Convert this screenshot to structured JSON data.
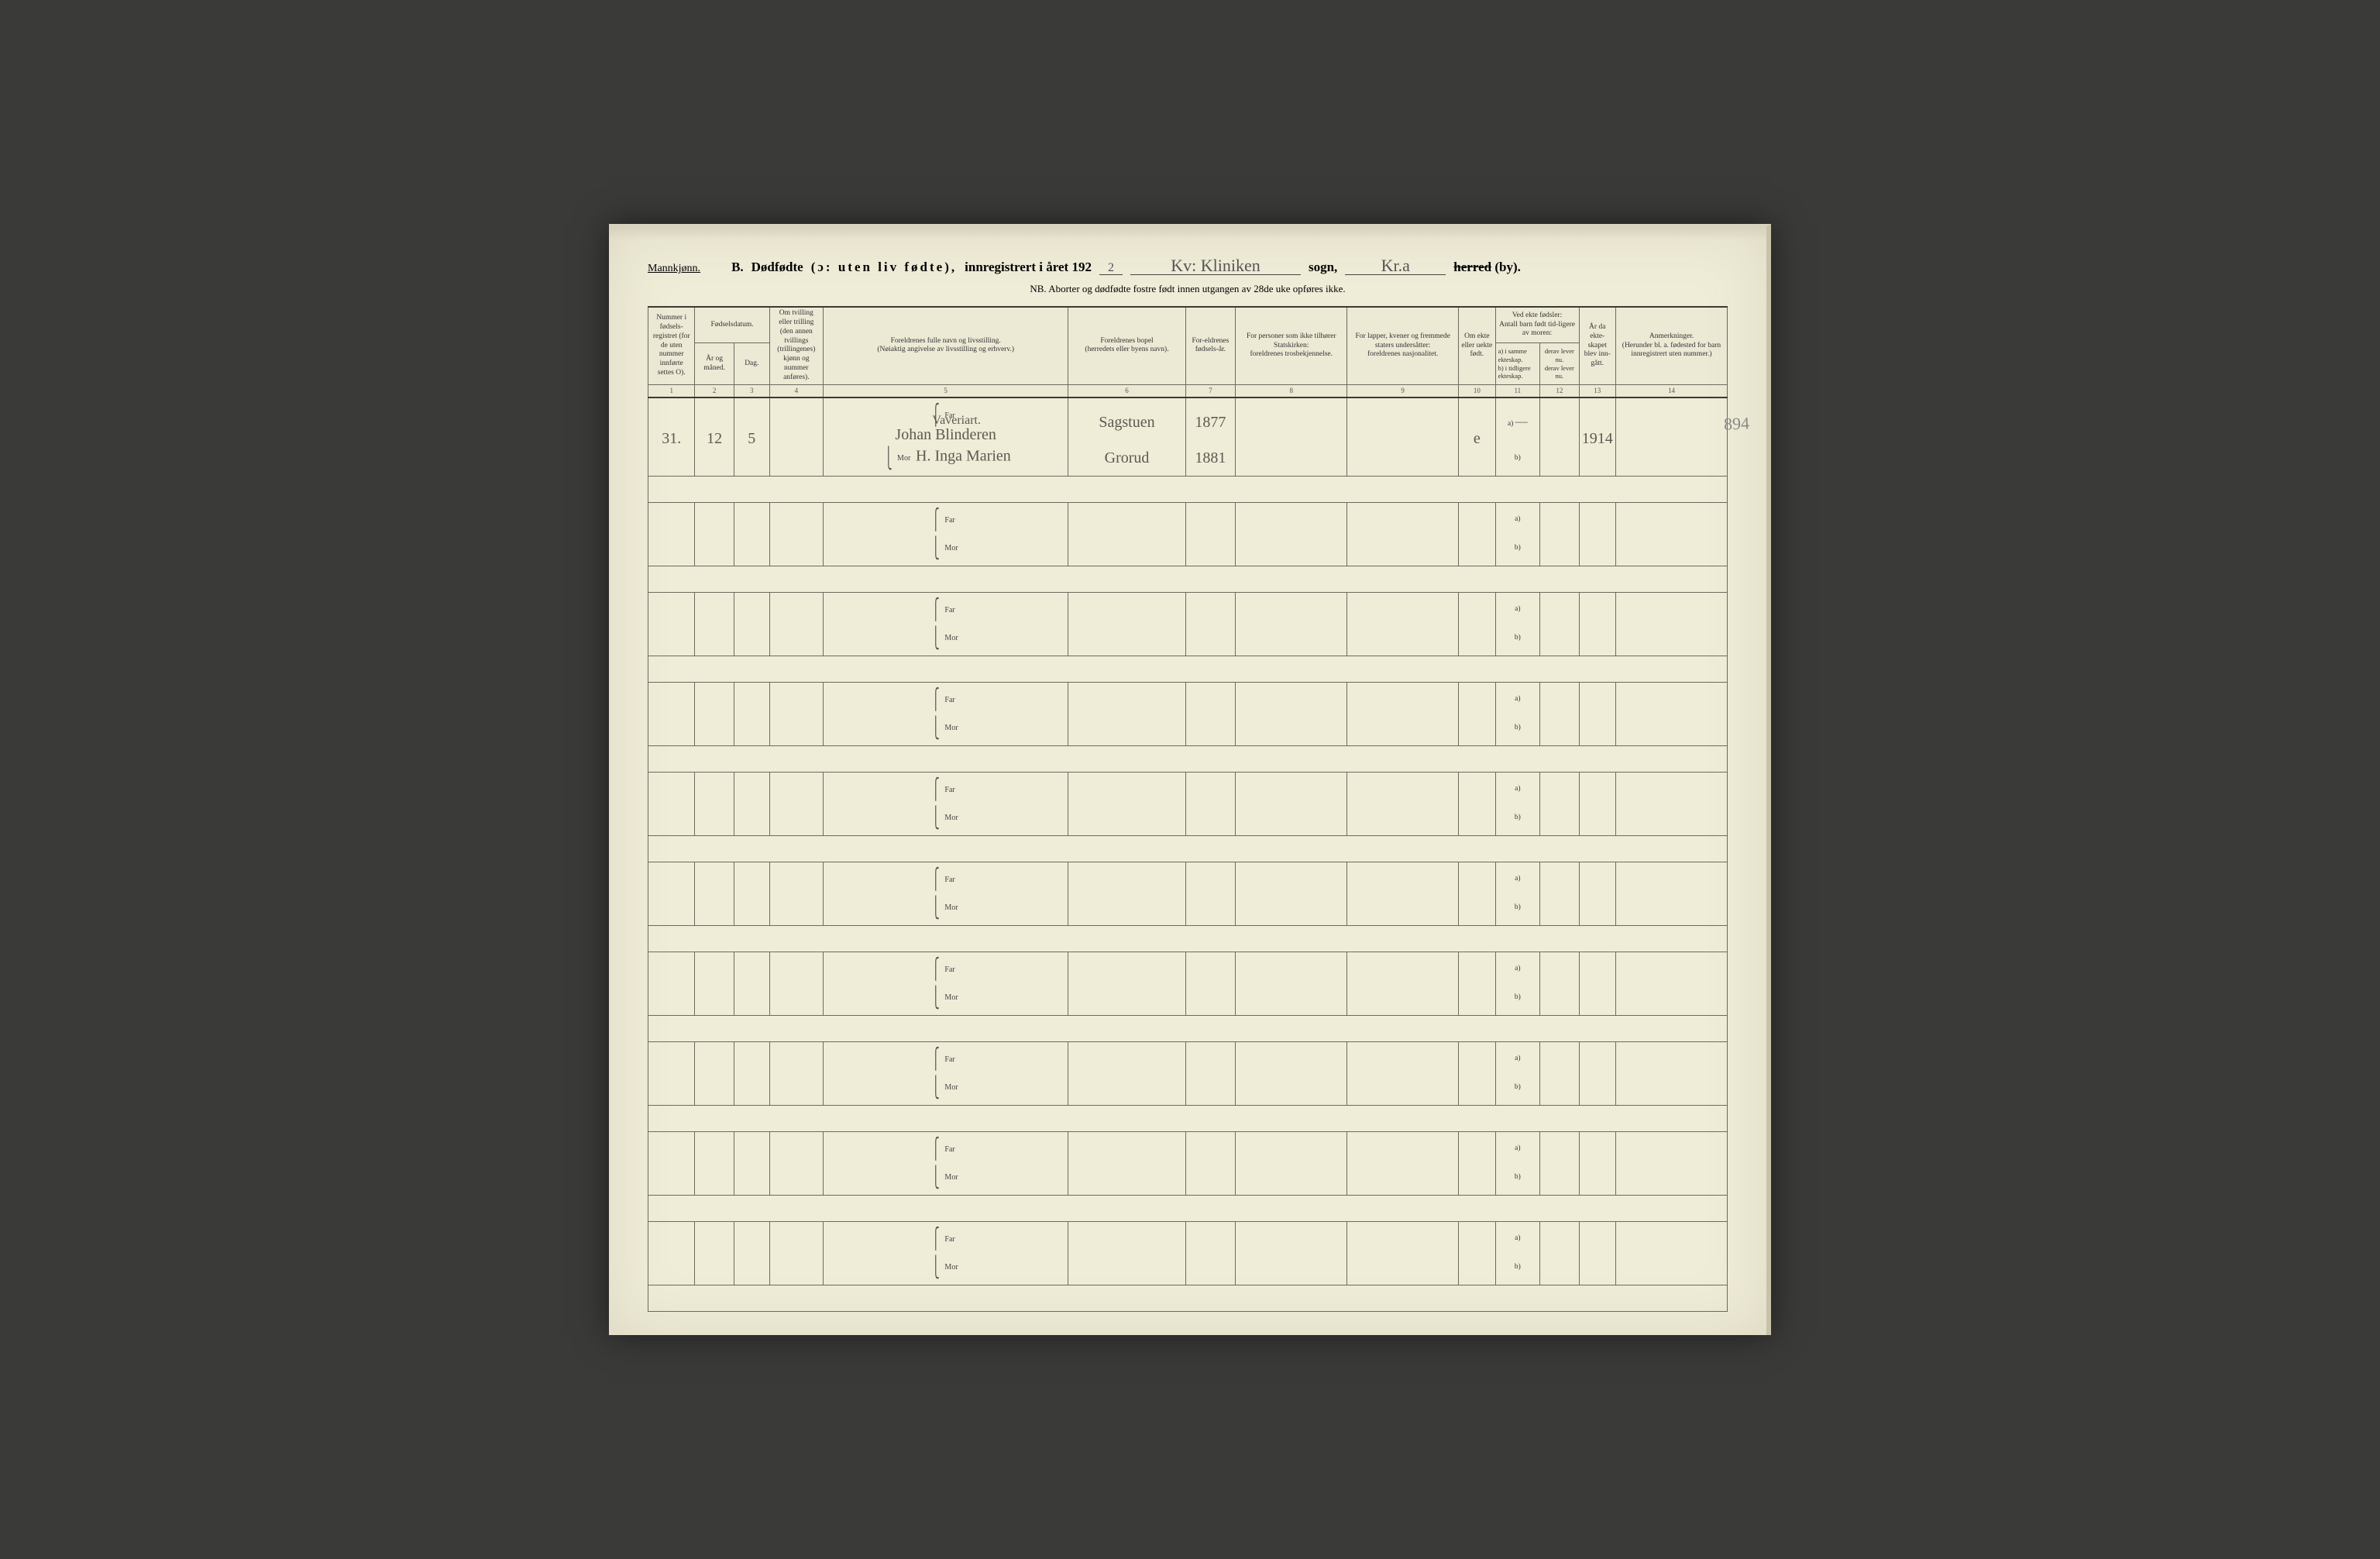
{
  "header": {
    "gender": "Mannkjønn.",
    "section_letter": "B.",
    "title_1": "Dødfødte",
    "title_paren": "(ɔ: uten liv fødte),",
    "title_2": "innregistrert i året 192",
    "year_suffix": "2",
    "sogn_blank": "Kv: Kliniken",
    "sogn_label": "sogn,",
    "herred_blank": "Kr.a",
    "herred_struck": "herred",
    "herred_by": " (by).",
    "nb": "NB.  Aborter og dødfødte fostre født innen utgangen av 28de uke opføres ikke."
  },
  "columns": {
    "c1": "Nummer i fødsels-registret (for de uten nummer innførte settes O).",
    "c2_top": "Fødselsdatum.",
    "c2": "År og måned.",
    "c3": "Dag.",
    "c4": "Om tvilling eller trilling (den annen tvillings (trillingenes) kjønn og nummer anføres).",
    "c5": "Foreldrenes fulle navn og livsstilling.\n(Nøiaktig angivelse av livsstilling og erhverv.)",
    "c6": "Foreldrenes bopel\n(herredets eller byens navn).",
    "c7": "For-eldrenes fødsels-år.",
    "c8": "For personer som ikke tilhører Statskirken:\nforeldrenes trosbekjennelse.",
    "c9": "For lapper, kvener og fremmede staters undersåtter:\nforeldrenes nasjonalitet.",
    "c10": "Om ekte eller uekte født.",
    "c11_top": "Ved ekte fødsler:\nAntall barn født tid-ligere av moren:",
    "c11a": "a) i samme ekteskap.\nb) i tidligere ekteskap.",
    "c11b": "derav lever nu.\nderav lever nu.",
    "c13": "År da ekte-skapet blev inn-gått.",
    "c14": "Anmerkninger.\n(Herunder bl. a. fødested for barn innregistrert uten nummer.)",
    "nums": [
      "1",
      "2",
      "3",
      "4",
      "5",
      "6",
      "7",
      "8",
      "9",
      "10",
      "11",
      "12",
      "13",
      "14"
    ]
  },
  "labels": {
    "far": "Far",
    "mor": "Mor",
    "a": "a)",
    "b": "b)"
  },
  "records": [
    {
      "num": "31.",
      "year_month": "12",
      "day": "5",
      "far_occ": "Vaveriart.",
      "far_name": "Johan Blinderen",
      "far_bopel": "Sagstuen",
      "far_year": "1877",
      "mor_name": "H. Inga Marien",
      "mor_bopel": "Grorud",
      "mor_year": "1881",
      "ekte": "e",
      "a_val": "—",
      "aar_ekt": "1914"
    },
    {},
    {},
    {},
    {},
    {},
    {},
    {},
    {},
    {}
  ],
  "margin_note": "894",
  "colors": {
    "paper": "#efecd8",
    "ink": "#333333",
    "rule": "#6b6b5e",
    "handwriting": "#5a5a50"
  }
}
